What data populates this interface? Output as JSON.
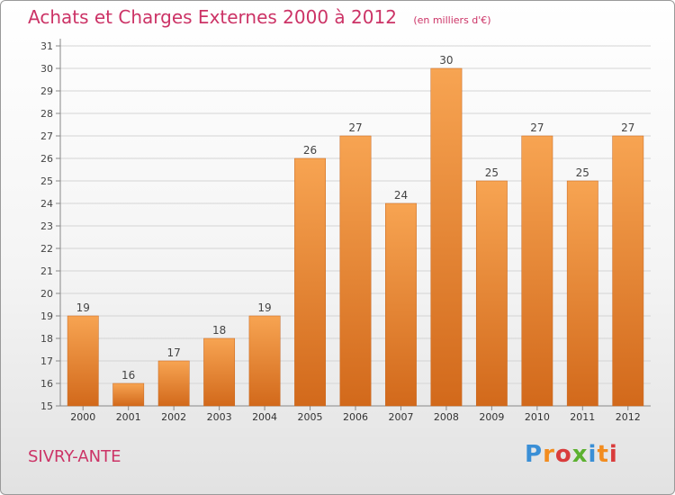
{
  "chart_data": {
    "type": "bar",
    "title": "Achats et Charges Externes 2000 à 2012",
    "subtitle": "(en milliers d'€)",
    "categories": [
      "2000",
      "2001",
      "2002",
      "2003",
      "2004",
      "2005",
      "2006",
      "2007",
      "2008",
      "2009",
      "2010",
      "2011",
      "2012"
    ],
    "values": [
      19,
      16,
      17,
      18,
      19,
      26,
      27,
      24,
      30,
      25,
      27,
      25,
      27
    ],
    "ylim": [
      15,
      31
    ],
    "yticks": [
      15,
      16,
      17,
      18,
      19,
      20,
      21,
      22,
      23,
      24,
      25,
      26,
      27,
      28,
      29,
      30,
      31
    ],
    "grid": true,
    "bar_color_top": "#f7a452",
    "bar_color_bottom": "#d2691b"
  },
  "footer": {
    "commune": "SIVRY-ANTE",
    "logo_text": "Proxiti",
    "logo_colors": [
      "#3a8fd6",
      "#f28c1f",
      "#d93c3c",
      "#5cb130",
      "#3a8fd6",
      "#f28c1f",
      "#d93c3c"
    ]
  }
}
